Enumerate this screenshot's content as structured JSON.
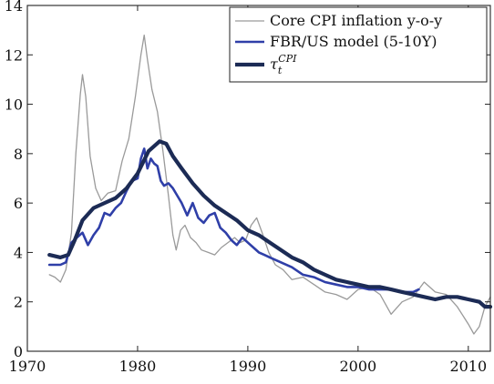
{
  "chart_data": {
    "type": "line",
    "title": "",
    "xlabel": "",
    "ylabel": "",
    "xlim": [
      1970,
      2012
    ],
    "ylim": [
      0,
      14
    ],
    "xticks": [
      1970,
      1980,
      1990,
      2000,
      2010
    ],
    "yticks": [
      0,
      2,
      4,
      6,
      8,
      10,
      12,
      14
    ],
    "xtick_labels": [
      "1970",
      "1980",
      "1990",
      "2000",
      "2010"
    ],
    "ytick_labels": [
      "0",
      "2",
      "4",
      "6",
      "8",
      "10",
      "12",
      "14"
    ],
    "grid": false,
    "legend_position": "top-right",
    "series": [
      {
        "name": "Core CPI inflation y-o-y",
        "legend_main": "Core CPI inflation y-o-y",
        "color": "#9a9a9a",
        "style": "thin",
        "x": [
          1972.0,
          1972.5,
          1973.0,
          1973.5,
          1974.0,
          1974.4,
          1974.8,
          1975.0,
          1975.3,
          1975.7,
          1976.2,
          1976.7,
          1977.3,
          1978.0,
          1978.6,
          1979.2,
          1979.8,
          1980.3,
          1980.6,
          1980.9,
          1981.3,
          1981.8,
          1982.3,
          1982.8,
          1983.2,
          1983.5,
          1983.9,
          1984.3,
          1984.8,
          1985.3,
          1985.8,
          1986.4,
          1987.0,
          1987.6,
          1988.2,
          1988.8,
          1989.3,
          1989.8,
          1990.3,
          1990.8,
          1991.3,
          1991.9,
          1992.5,
          1993.2,
          1994.0,
          1995.0,
          1996.0,
          1997.0,
          1998.0,
          1999.0,
          2000.0,
          2001.0,
          2002.0,
          2003.0,
          2004.0,
          2005.0,
          2006.0,
          2007.0,
          2008.0,
          2009.0,
          2010.0,
          2010.5,
          2011.0,
          2011.5,
          2012.0
        ],
        "y": [
          3.1,
          3.0,
          2.8,
          3.3,
          4.8,
          8.0,
          10.4,
          11.2,
          10.3,
          7.9,
          6.6,
          6.1,
          6.4,
          6.5,
          7.7,
          8.6,
          10.3,
          12.0,
          12.8,
          11.8,
          10.6,
          9.7,
          8.1,
          6.3,
          4.7,
          4.1,
          4.9,
          5.1,
          4.6,
          4.4,
          4.1,
          4.0,
          3.9,
          4.2,
          4.4,
          4.6,
          4.4,
          4.5,
          5.1,
          5.4,
          4.8,
          4.0,
          3.5,
          3.3,
          2.9,
          3.0,
          2.7,
          2.4,
          2.3,
          2.1,
          2.5,
          2.6,
          2.3,
          1.5,
          2.0,
          2.2,
          2.8,
          2.4,
          2.3,
          1.8,
          1.1,
          0.7,
          1.0,
          1.8,
          2.2
        ]
      },
      {
        "name": "FBR/US model (5-10Y)",
        "legend_main": "FBR/US model (5-10Y)",
        "color": "#2f3fa8",
        "style": "medium",
        "x": [
          1972.0,
          1973.0,
          1973.5,
          1974.0,
          1974.5,
          1975.0,
          1975.5,
          1976.0,
          1976.5,
          1977.0,
          1977.5,
          1978.0,
          1978.5,
          1979.0,
          1979.5,
          1980.0,
          1980.3,
          1980.6,
          1980.9,
          1981.2,
          1981.5,
          1981.8,
          1982.1,
          1982.4,
          1982.8,
          1983.2,
          1983.6,
          1984.0,
          1984.5,
          1985.0,
          1985.5,
          1986.0,
          1986.5,
          1987.0,
          1987.5,
          1988.0,
          1988.5,
          1989.0,
          1989.5,
          1990.0,
          1990.5,
          1991.0,
          1991.5,
          1992.0,
          1993.0,
          1994.0,
          1995.0,
          1996.0,
          1997.0,
          1998.0,
          1999.0,
          2000.0,
          2001.0,
          2002.0,
          2003.0,
          2004.0,
          2005.0,
          2005.5
        ],
        "y": [
          3.5,
          3.5,
          3.6,
          4.4,
          4.6,
          4.8,
          4.3,
          4.7,
          5.0,
          5.6,
          5.5,
          5.8,
          6.0,
          6.5,
          6.9,
          7.0,
          7.8,
          8.2,
          7.4,
          7.8,
          7.6,
          7.5,
          6.9,
          6.7,
          6.8,
          6.6,
          6.3,
          6.0,
          5.5,
          6.0,
          5.4,
          5.2,
          5.5,
          5.6,
          5.0,
          4.8,
          4.5,
          4.3,
          4.6,
          4.4,
          4.2,
          4.0,
          3.9,
          3.8,
          3.6,
          3.4,
          3.1,
          3.0,
          2.8,
          2.7,
          2.6,
          2.6,
          2.5,
          2.5,
          2.5,
          2.4,
          2.4,
          2.5
        ]
      },
      {
        "name": "τ_t^CPI",
        "legend_main": "τ",
        "legend_sub": "t",
        "legend_sup": "CPI",
        "color": "#1c2b55",
        "style": "thick",
        "x": [
          1972.0,
          1973.0,
          1973.7,
          1974.3,
          1975.0,
          1976.0,
          1977.0,
          1978.0,
          1979.0,
          1980.0,
          1981.0,
          1982.0,
          1982.6,
          1983.2,
          1984.0,
          1985.0,
          1986.0,
          1987.0,
          1988.0,
          1989.0,
          1990.0,
          1991.0,
          1992.0,
          1993.0,
          1994.0,
          1995.0,
          1996.0,
          1997.0,
          1998.0,
          1999.0,
          2000.0,
          2001.0,
          2002.0,
          2003.0,
          2004.0,
          2005.0,
          2006.0,
          2007.0,
          2008.0,
          2009.0,
          2010.0,
          2011.0,
          2011.5,
          2012.0
        ],
        "y": [
          3.9,
          3.8,
          3.9,
          4.5,
          5.3,
          5.8,
          6.0,
          6.2,
          6.6,
          7.2,
          8.1,
          8.5,
          8.4,
          7.9,
          7.4,
          6.8,
          6.3,
          5.9,
          5.6,
          5.3,
          4.9,
          4.7,
          4.4,
          4.1,
          3.8,
          3.6,
          3.3,
          3.1,
          2.9,
          2.8,
          2.7,
          2.6,
          2.6,
          2.5,
          2.4,
          2.3,
          2.2,
          2.1,
          2.2,
          2.2,
          2.1,
          2.0,
          1.8,
          1.8
        ]
      }
    ]
  }
}
